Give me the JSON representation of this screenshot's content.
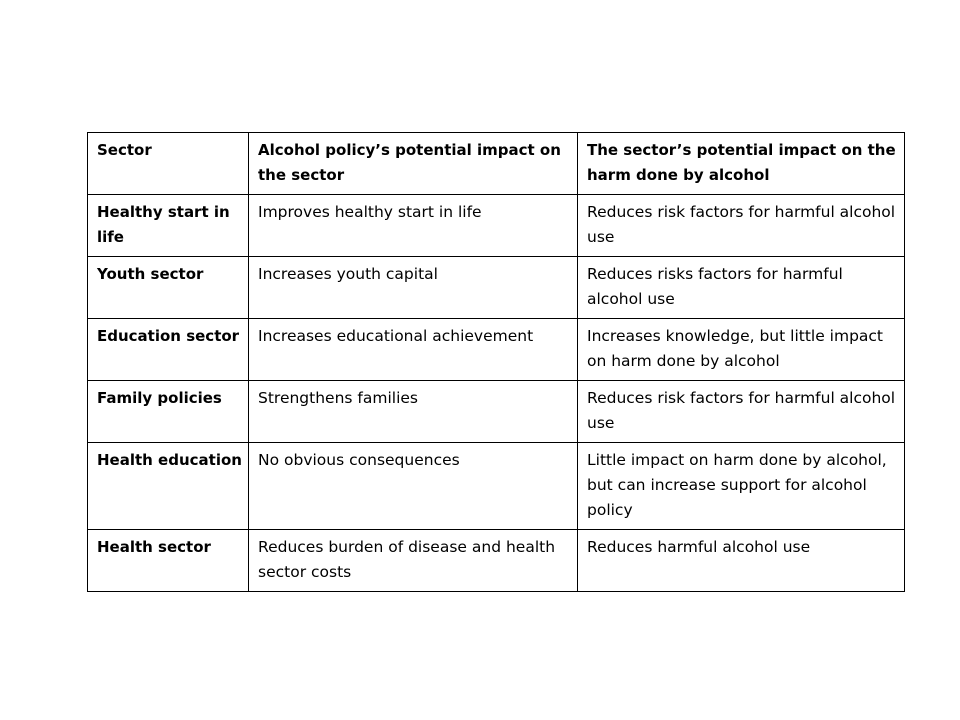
{
  "table": {
    "headers": [
      "Sector",
      "Alcohol policy’s potential impact on the sector",
      "The sector’s potential impact on the harm done by alcohol"
    ],
    "rows": [
      {
        "sector": "Healthy start in life",
        "policy_impact": "Improves healthy start in life",
        "harm_impact": "Reduces risk factors for harmful alcohol use"
      },
      {
        "sector": "Youth sector",
        "policy_impact": "Increases youth capital",
        "harm_impact": "Reduces risks factors for harmful alcohol use"
      },
      {
        "sector": "Education sector",
        "policy_impact": "Increases educational achievement",
        "harm_impact": "Increases knowledge, but little impact on harm done by alcohol"
      },
      {
        "sector": "Family policies",
        "policy_impact": "Strengthens families",
        "harm_impact": "Reduces risk factors for harmful alcohol use"
      },
      {
        "sector": "Health education",
        "policy_impact": "No obvious consequences",
        "harm_impact": "Little impact on harm done by alcohol, but can increase support for alcohol policy"
      },
      {
        "sector": "Health sector",
        "policy_impact": "Reduces burden of disease and health sector costs",
        "harm_impact": "Reduces harmful alcohol use"
      }
    ]
  }
}
